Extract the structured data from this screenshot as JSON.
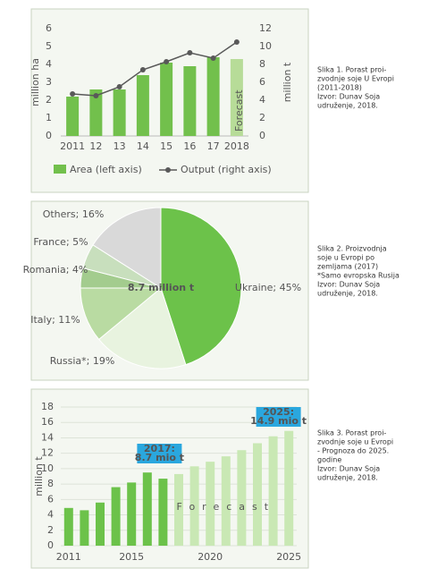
{
  "chart_data": [
    {
      "type": "combo",
      "categories": [
        "2011",
        "12",
        "13",
        "14",
        "15",
        "16",
        "17",
        "2018"
      ],
      "series": [
        {
          "name": "Area (left axis)",
          "type": "bar",
          "colors": [
            "#72c04c",
            "#72c04c",
            "#72c04c",
            "#72c04c",
            "#72c04c",
            "#72c04c",
            "#72c04c",
            "#b7dc98"
          ],
          "values": [
            2.2,
            2.6,
            2.6,
            3.4,
            4.1,
            3.9,
            4.4,
            4.3
          ]
        },
        {
          "name": "Output (right axis)",
          "type": "line",
          "axis": "y2",
          "color": "#595959",
          "values": [
            4.7,
            4.5,
            5.5,
            7.4,
            8.3,
            9.3,
            8.7,
            10.5
          ]
        }
      ],
      "ylabel": "million ha",
      "y2label": "million t",
      "ylim": [
        0,
        6
      ],
      "yticks": [
        0,
        1,
        2,
        3,
        4,
        5,
        6
      ],
      "y2lim": [
        0,
        12
      ],
      "y2ticks": [
        0,
        2,
        4,
        6,
        8,
        10,
        12
      ],
      "annotation": "Forecast"
    },
    {
      "type": "pie",
      "values": [
        45,
        19,
        11,
        4,
        5,
        16
      ],
      "value_labels": [
        "Ukraine; 45%",
        "Russia*; 19%",
        "Italy; 11%",
        "Romania; 4%",
        "France; 5%",
        "Others; 16%"
      ],
      "colors": [
        "#6cc24a",
        "#e8f3df",
        "#b9dba2",
        "#a3cc8e",
        "#c8dfbd",
        "#d9d9d9"
      ],
      "center_label": "8.7 million t"
    },
    {
      "type": "bar",
      "categories": [
        "2011",
        null,
        null,
        null,
        "2015",
        null,
        null,
        null,
        null,
        "2020",
        null,
        null,
        null,
        null,
        "2025"
      ],
      "values": [
        4.9,
        4.6,
        5.6,
        7.6,
        8.2,
        9.5,
        8.7,
        9.3,
        10.3,
        10.9,
        11.6,
        12.4,
        13.3,
        14.2,
        14.9
      ],
      "colors": [
        "#6cc24a",
        "#6cc24a",
        "#6cc24a",
        "#6cc24a",
        "#6cc24a",
        "#6cc24a",
        "#6cc24a",
        "#c9e8b4",
        "#c9e8b4",
        "#c9e8b4",
        "#c9e8b4",
        "#c9e8b4",
        "#c9e8b4",
        "#c9e8b4",
        "#c9e8b4"
      ],
      "ylabel": "million t",
      "ylim": [
        0,
        18
      ],
      "yticks": [
        0,
        2,
        4,
        6,
        8,
        10,
        12,
        14,
        16,
        18
      ],
      "grid": true,
      "forecast_label": "Forecast",
      "annotations": [
        [
          "2017:",
          "8.7 mio t"
        ],
        [
          "2025:",
          "14.9 mio t"
        ]
      ]
    }
  ],
  "captions": [
    [
      "Slika 1. Porast proi-",
      "zvodnje soje U Evropi",
      "(2011-2018)",
      "Izvor: Dunav Soja",
      "udruženje, 2018."
    ],
    [
      "Slika 2. Proizvodnja",
      "soje u Evropi po",
      "zemljama (2017)",
      "*Samo evropska Rusija",
      "Izvor: Dunav Soja",
      "udruženje, 2018."
    ],
    [
      "Slika 3. Porast proi-",
      "zvodnje soje u Evropi",
      "- Prognoza do 2025.",
      "godine",
      "Izvor: Dunav Soja",
      "udruženje, 2018."
    ]
  ]
}
